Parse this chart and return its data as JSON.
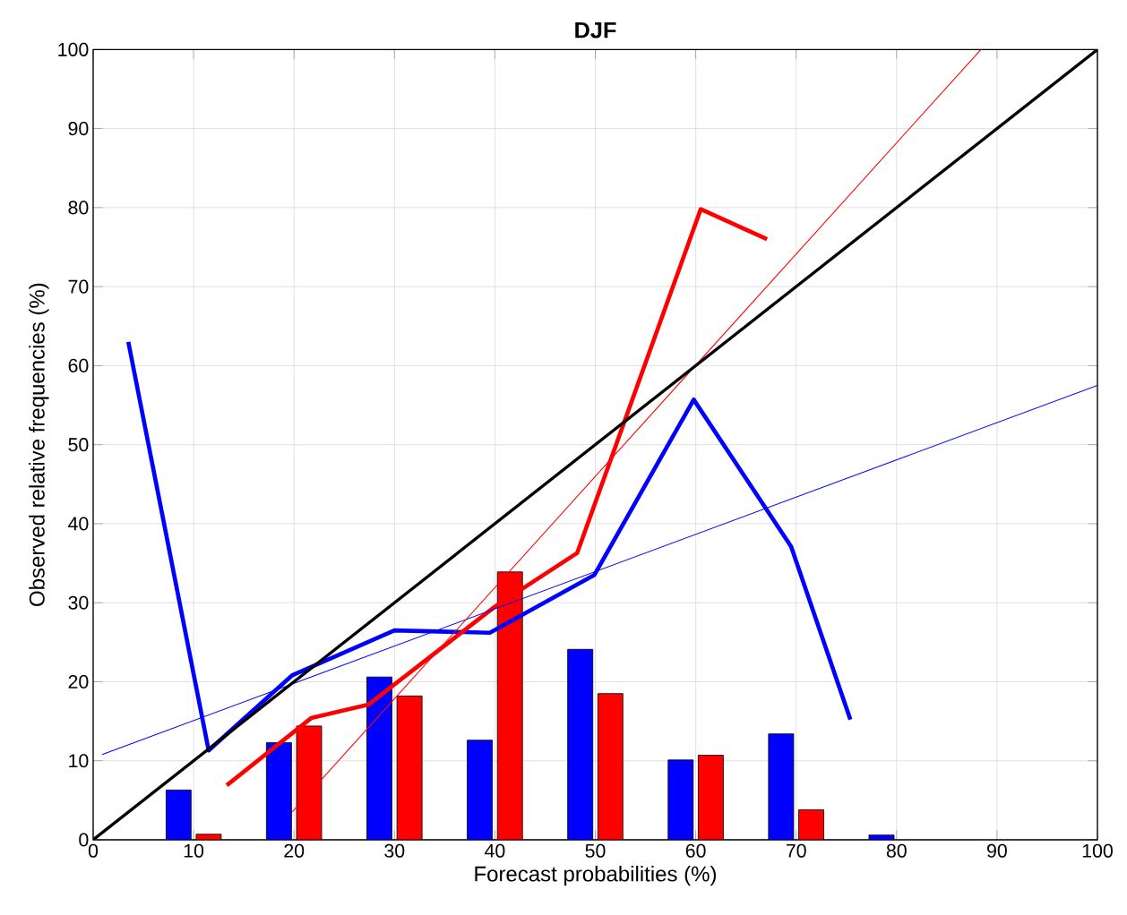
{
  "chart_data": {
    "type": "line",
    "title": "DJF",
    "xlabel": "Forecast probabilities (%)",
    "ylabel": "Observed relative frequencies (%)",
    "xlim": [
      0,
      100
    ],
    "ylim": [
      0,
      100
    ],
    "xticks": [
      0,
      10,
      20,
      30,
      40,
      50,
      60,
      70,
      80,
      90,
      100
    ],
    "yticks": [
      0,
      10,
      20,
      30,
      40,
      50,
      60,
      70,
      80,
      90,
      100
    ],
    "grid": true,
    "series": [
      {
        "type": "bar",
        "color": "#0000ff",
        "x": [
          8.5,
          18.5,
          28.5,
          38.5,
          48.5,
          58.5,
          68.5,
          78.5
        ],
        "values": [
          6.3,
          12.3,
          20.6,
          12.6,
          24.1,
          10.1,
          13.4,
          0.6
        ]
      },
      {
        "type": "bar",
        "color": "#ff0000",
        "x": [
          11.5,
          21.5,
          31.5,
          41.5,
          51.5,
          61.5,
          71.5
        ],
        "values": [
          0.7,
          14.4,
          18.2,
          33.9,
          18.5,
          10.7,
          3.8
        ]
      },
      {
        "color": "#0000ff",
        "x": [
          3.5,
          11.5,
          19.8,
          30.0,
          39.5,
          49.9,
          59.8,
          69.5,
          75.4
        ],
        "values": [
          63.0,
          11.3,
          20.8,
          26.5,
          26.2,
          33.5,
          55.7,
          37.1,
          15.2
        ]
      },
      {
        "color": "#ff0000",
        "x": [
          13.3,
          21.7,
          27.4,
          40.0,
          48.2,
          60.5,
          67.1
        ],
        "values": [
          6.9,
          15.4,
          17.1,
          29.5,
          36.3,
          79.8,
          76.0
        ]
      },
      {
        "color": "#0000ff",
        "x": [
          0.9,
          100
        ],
        "values": [
          10.8,
          57.5
        ]
      },
      {
        "color": "#ff0000",
        "x": [
          19.8,
          88.4
        ],
        "values": [
          3.5,
          100
        ]
      },
      {
        "color": "#000000",
        "x": [
          0,
          100
        ],
        "values": [
          0,
          100
        ]
      }
    ]
  }
}
